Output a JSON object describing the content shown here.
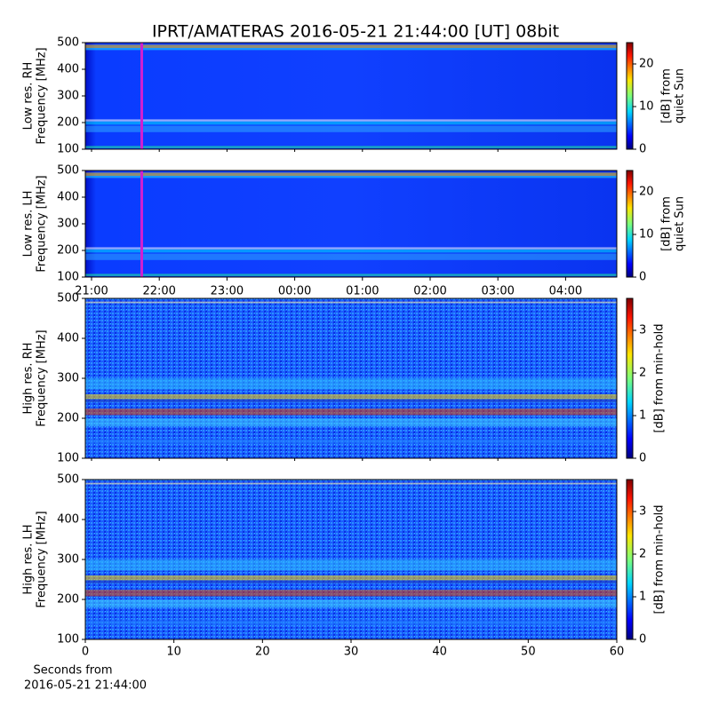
{
  "title": "IPRT/AMATERAS 2016-05-21 21:44:00 [UT]   08bit",
  "chart_data": [
    {
      "type": "spectrogram",
      "ylabel": [
        "Low res. RH",
        "Frequency [MHz]"
      ],
      "ylim": [
        100,
        500
      ],
      "yticks": [
        100,
        200,
        300,
        400,
        500
      ],
      "colorbar": {
        "label": [
          "[dB] from",
          "quiet Sun"
        ],
        "lim": [
          0,
          25
        ],
        "ticks": [
          0,
          10,
          20
        ]
      }
    },
    {
      "type": "spectrogram",
      "ylabel": [
        "Low res. LH",
        "Frequency [MHz]"
      ],
      "ylim": [
        100,
        500
      ],
      "yticks": [
        100,
        200,
        300,
        400,
        500
      ],
      "colorbar": {
        "label": [
          "[dB] from",
          "quiet Sun"
        ],
        "lim": [
          0,
          25
        ],
        "ticks": [
          0,
          10,
          20
        ]
      },
      "xticks": [
        "21:00",
        "22:00",
        "23:00",
        "00:00",
        "01:00",
        "02:00",
        "03:00",
        "04:00"
      ]
    },
    {
      "type": "spectrogram",
      "ylabel": [
        "High res. RH",
        "Frequency [MHz]"
      ],
      "ylim": [
        100,
        500
      ],
      "yticks": [
        100,
        200,
        300,
        400,
        500
      ],
      "colorbar": {
        "label": [
          "[dB] from min-hold"
        ],
        "lim": [
          0,
          3.75
        ],
        "ticks": [
          0,
          1,
          2,
          3
        ]
      }
    },
    {
      "type": "spectrogram",
      "ylabel": [
        "High res. LH",
        "Frequency [MHz]"
      ],
      "ylim": [
        100,
        500
      ],
      "yticks": [
        100,
        200,
        300,
        400,
        500
      ],
      "colorbar": {
        "label": [
          "[dB] from min-hold"
        ],
        "lim": [
          0,
          3.75
        ],
        "ticks": [
          0,
          1,
          2,
          3
        ]
      },
      "xlim": [
        0,
        60
      ],
      "xticks": [
        0,
        10,
        20,
        30,
        40,
        50,
        60
      ],
      "xlabel": [
        "Seconds from",
        "2016-05-21 21:44:00"
      ]
    }
  ]
}
